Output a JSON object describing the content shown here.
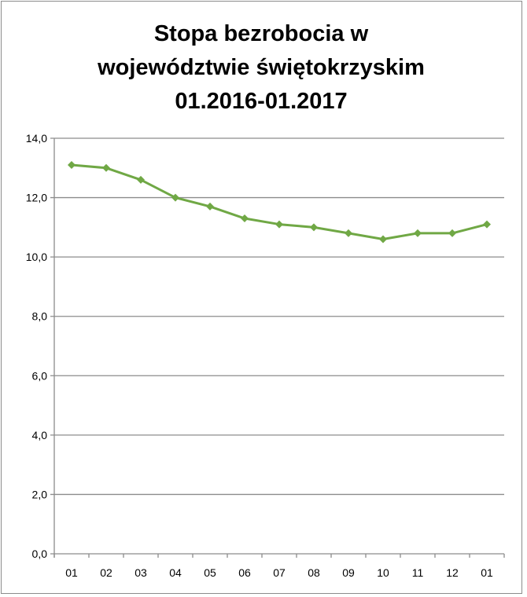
{
  "chart_data": {
    "type": "line",
    "title_lines": [
      "Stopa bezrobocia w",
      "województwie świętokrzyskim",
      "01.2016-01.2017"
    ],
    "categories": [
      "01",
      "02",
      "03",
      "04",
      "05",
      "06",
      "07",
      "08",
      "09",
      "10",
      "11",
      "12",
      "01"
    ],
    "values": [
      13.1,
      13.0,
      12.6,
      12.0,
      11.7,
      11.3,
      11.1,
      11.0,
      10.8,
      10.6,
      10.8,
      10.8,
      11.1
    ],
    "ylim": [
      0,
      14
    ],
    "yticks": [
      "0,0",
      "2,0",
      "4,0",
      "6,0",
      "8,0",
      "10,0",
      "12,0",
      "14,0"
    ],
    "ytick_values": [
      0,
      2,
      4,
      6,
      8,
      10,
      12,
      14
    ],
    "grid": true,
    "legend": "none",
    "marker": "diamond",
    "line_color": "#70a845",
    "grid_color": "#8c8c8c"
  }
}
